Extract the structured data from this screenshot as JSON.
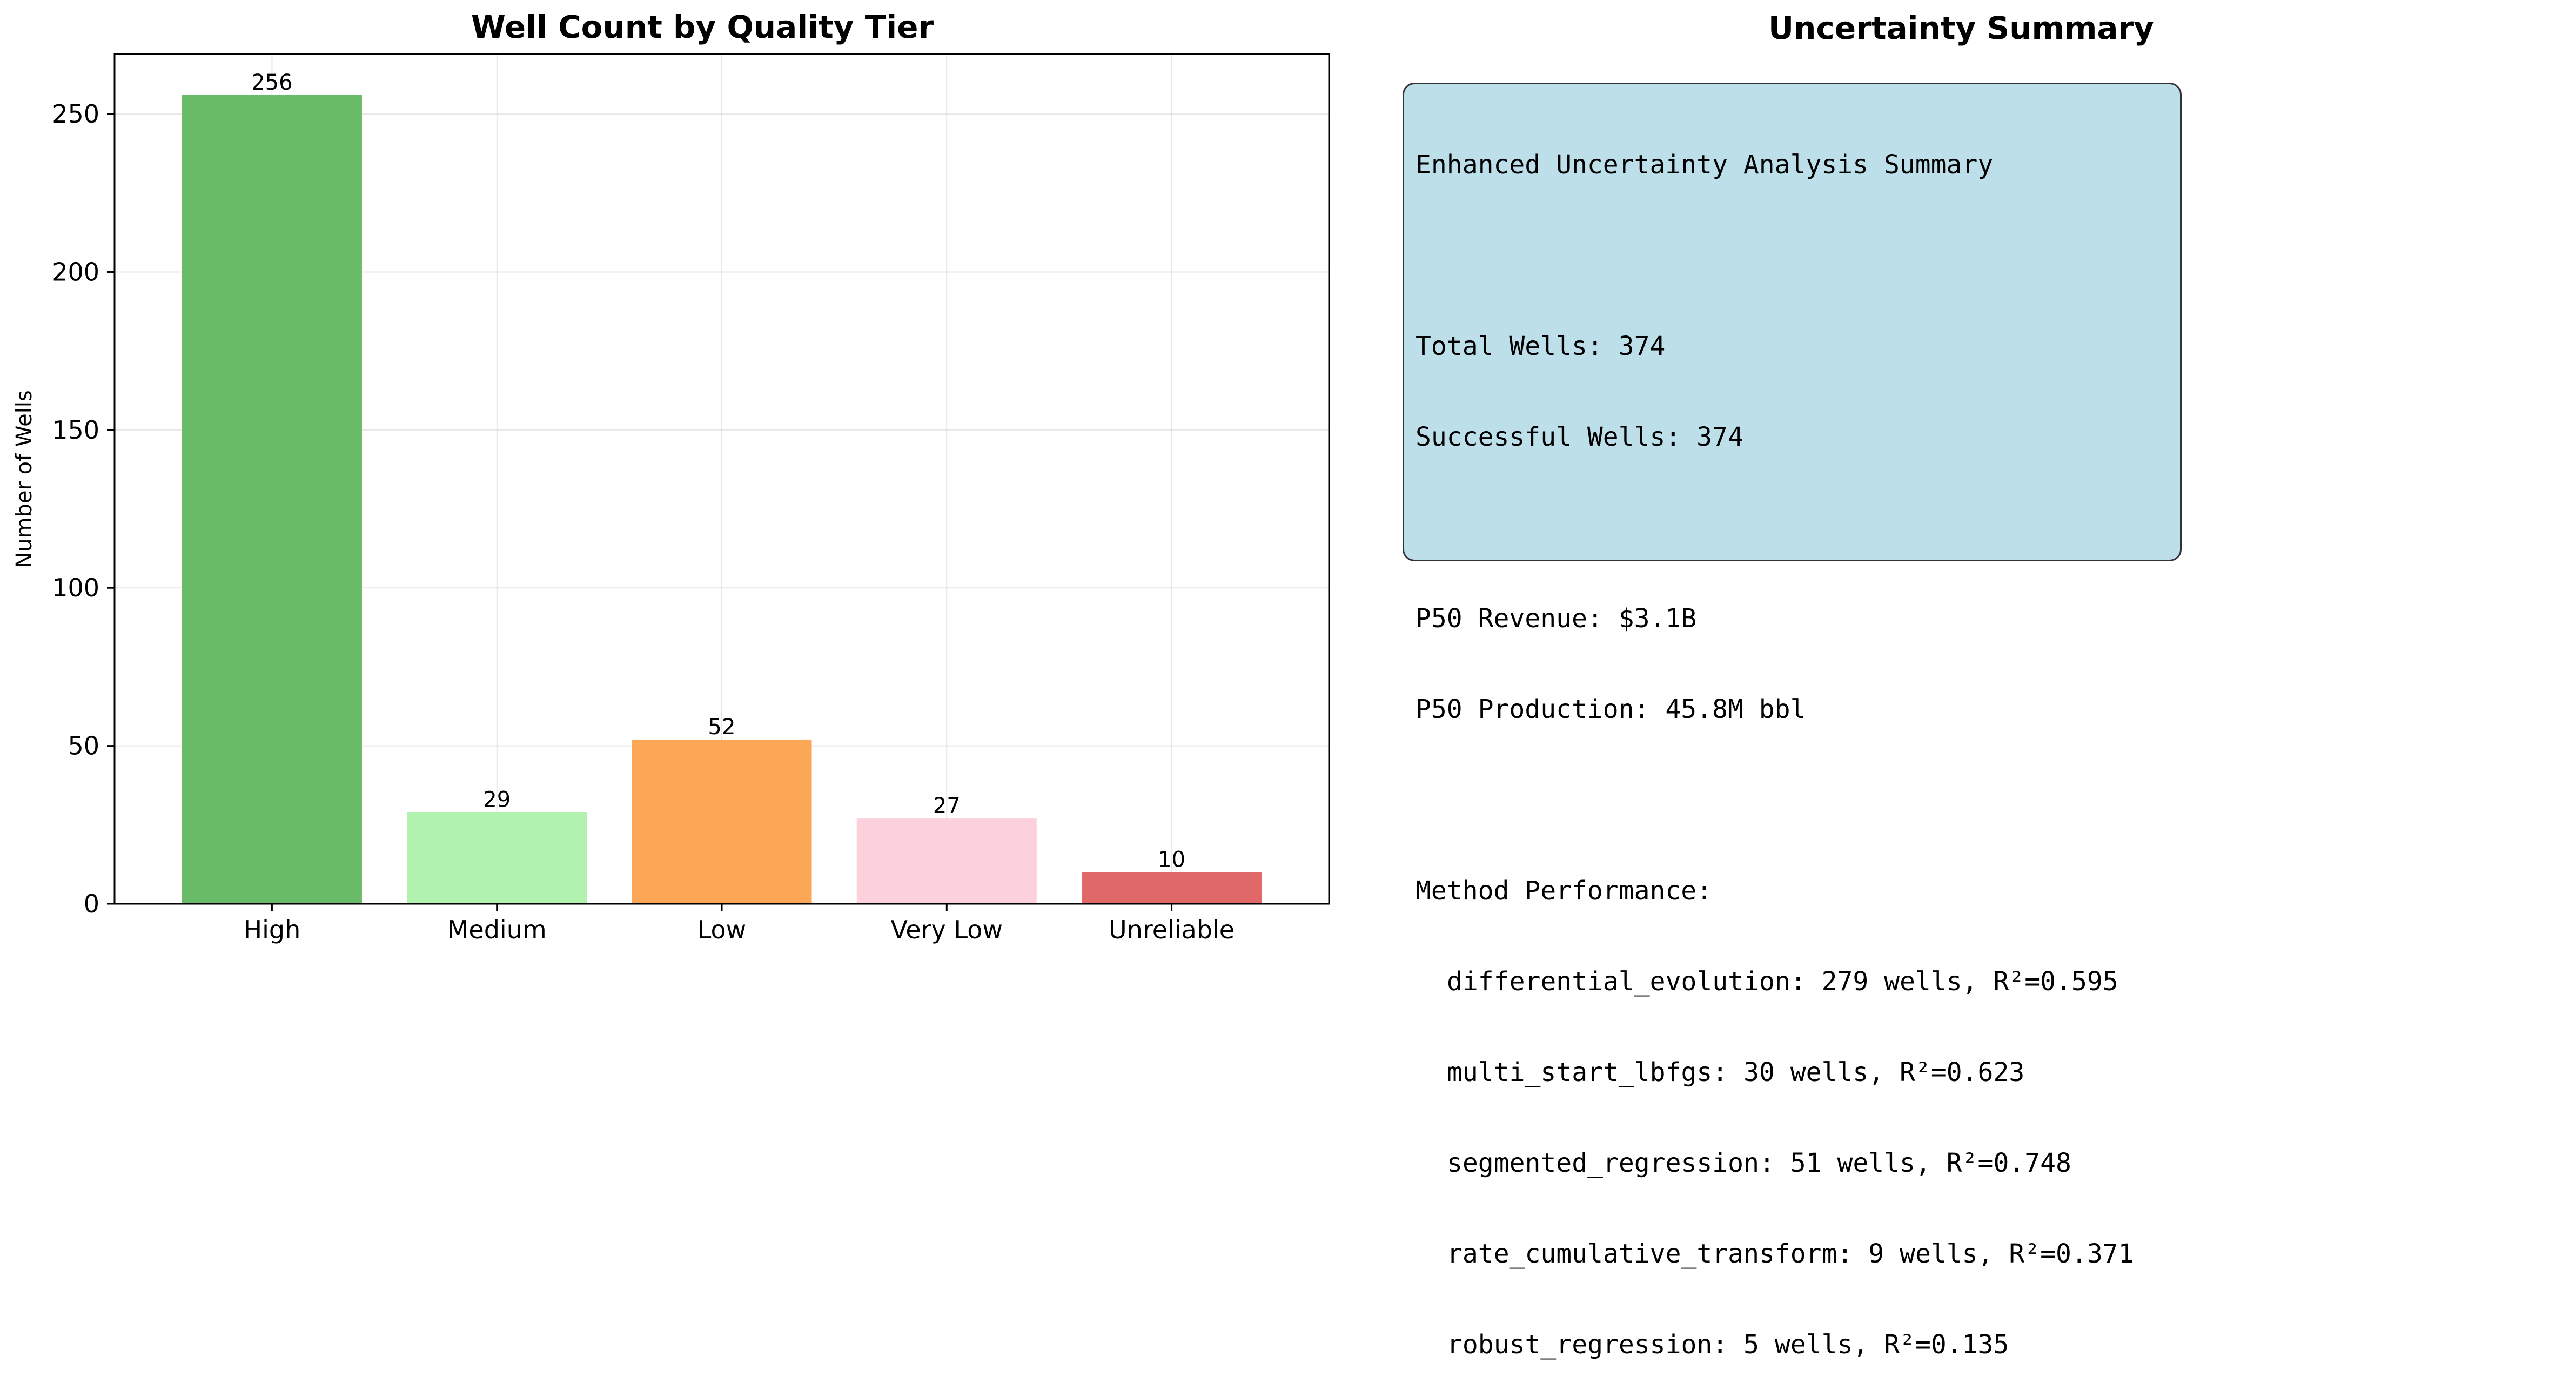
{
  "chart_data": {
    "type": "bar",
    "title": "Well Count by Quality Tier",
    "xlabel": "",
    "ylabel": "Number of Wells",
    "categories": [
      "High",
      "Medium",
      "Low",
      "Very Low",
      "Unreliable"
    ],
    "values": [
      256,
      29,
      52,
      27,
      10
    ],
    "data_labels": [
      "256",
      "29",
      "52",
      "27",
      "10"
    ],
    "colors": [
      "#6abb67",
      "#b0f2ae",
      "#fca756",
      "#fdd1db",
      "#e06868"
    ],
    "ylim": [
      0,
      269
    ],
    "yticks": [
      0,
      50,
      100,
      150,
      200,
      250
    ],
    "ytick_labels": [
      "0",
      "50",
      "100",
      "150",
      "200",
      "250"
    ],
    "grid": true,
    "legend": "none"
  },
  "summary_panel": {
    "title": "Uncertainty Summary",
    "heading": "Enhanced Uncertainty Analysis Summary",
    "total_wells": "Total Wells: 374",
    "successful_wells": "Successful Wells: 374",
    "p50_revenue": "P50 Revenue: $3.1B",
    "p50_production": "P50 Production: 45.8M bbl",
    "method_heading": "Method Performance:",
    "methods": [
      "differential_evolution: 279 wells, R²=0.595",
      "multi_start_lbfgs: 30 wells, R²=0.623",
      "segmented_regression: 51 wells, R²=0.748",
      "rate_cumulative_transform: 9 wells, R²=0.371",
      "robust_regression: 5 wells, R²=0.135"
    ],
    "box_color": "#add8e6"
  }
}
